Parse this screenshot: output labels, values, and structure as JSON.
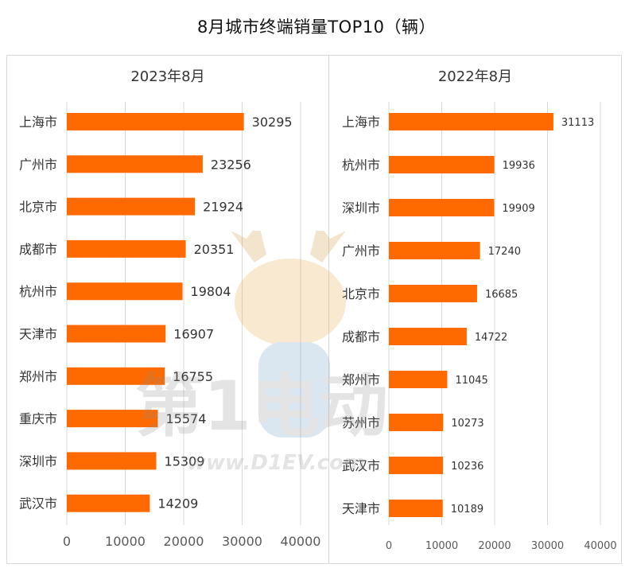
{
  "title": "8月城市终端销量TOP10（辆）",
  "watermark": {
    "site_text": "www.D1EV.com",
    "logo_text": "第1电动"
  },
  "colors": {
    "bar": "#FF6A00",
    "grid": "#D9D9D9",
    "axis_text": "#595959"
  },
  "chart_data": [
    {
      "type": "bar",
      "orientation": "horizontal",
      "title": "2023年8月",
      "categories": [
        "上海市",
        "广州市",
        "北京市",
        "成都市",
        "杭州市",
        "天津市",
        "郑州市",
        "重庆市",
        "深圳市",
        "武汉市"
      ],
      "values": [
        30295,
        23256,
        21924,
        20351,
        19804,
        16907,
        16755,
        15574,
        15309,
        14209
      ],
      "xlim": [
        0,
        40000
      ],
      "xticks": [
        0,
        10000,
        20000,
        30000,
        40000
      ],
      "grid": true,
      "legend": "none"
    },
    {
      "type": "bar",
      "orientation": "horizontal",
      "title": "2022年8月",
      "categories": [
        "上海市",
        "杭州市",
        "深圳市",
        "广州市",
        "北京市",
        "成都市",
        "郑州市",
        "苏州市",
        "武汉市",
        "天津市"
      ],
      "values": [
        31113,
        19936,
        19909,
        17240,
        16685,
        14722,
        11045,
        10273,
        10236,
        10189
      ],
      "xlim": [
        0,
        40000
      ],
      "xticks": [
        0,
        10000,
        20000,
        30000,
        40000
      ],
      "grid": true,
      "legend": "none"
    }
  ]
}
